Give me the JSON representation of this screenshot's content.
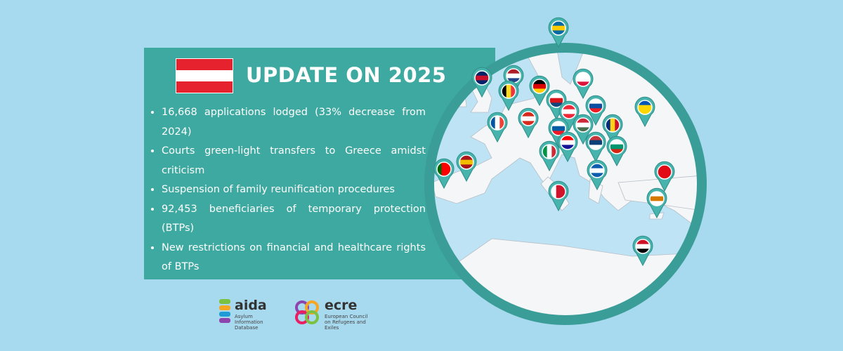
{
  "header": {
    "title": "UPDATE ON 2025"
  },
  "bullets": [
    "16,668 applications lodged (33% decrease from 2024)",
    "Courts green-light transfers to Greece amidst criticism",
    "Suspension of family reunification procedures",
    "92,453 beneficiaries of temporary protection (BTPs)",
    "New restrictions on financial and healthcare rights of BTPs"
  ],
  "logos": {
    "aida": {
      "name": "aida",
      "subtitle": "Asylum Information Database"
    },
    "ecre": {
      "name": "ecre",
      "subtitle": "European Council on Refugees and Exiles"
    }
  }
}
